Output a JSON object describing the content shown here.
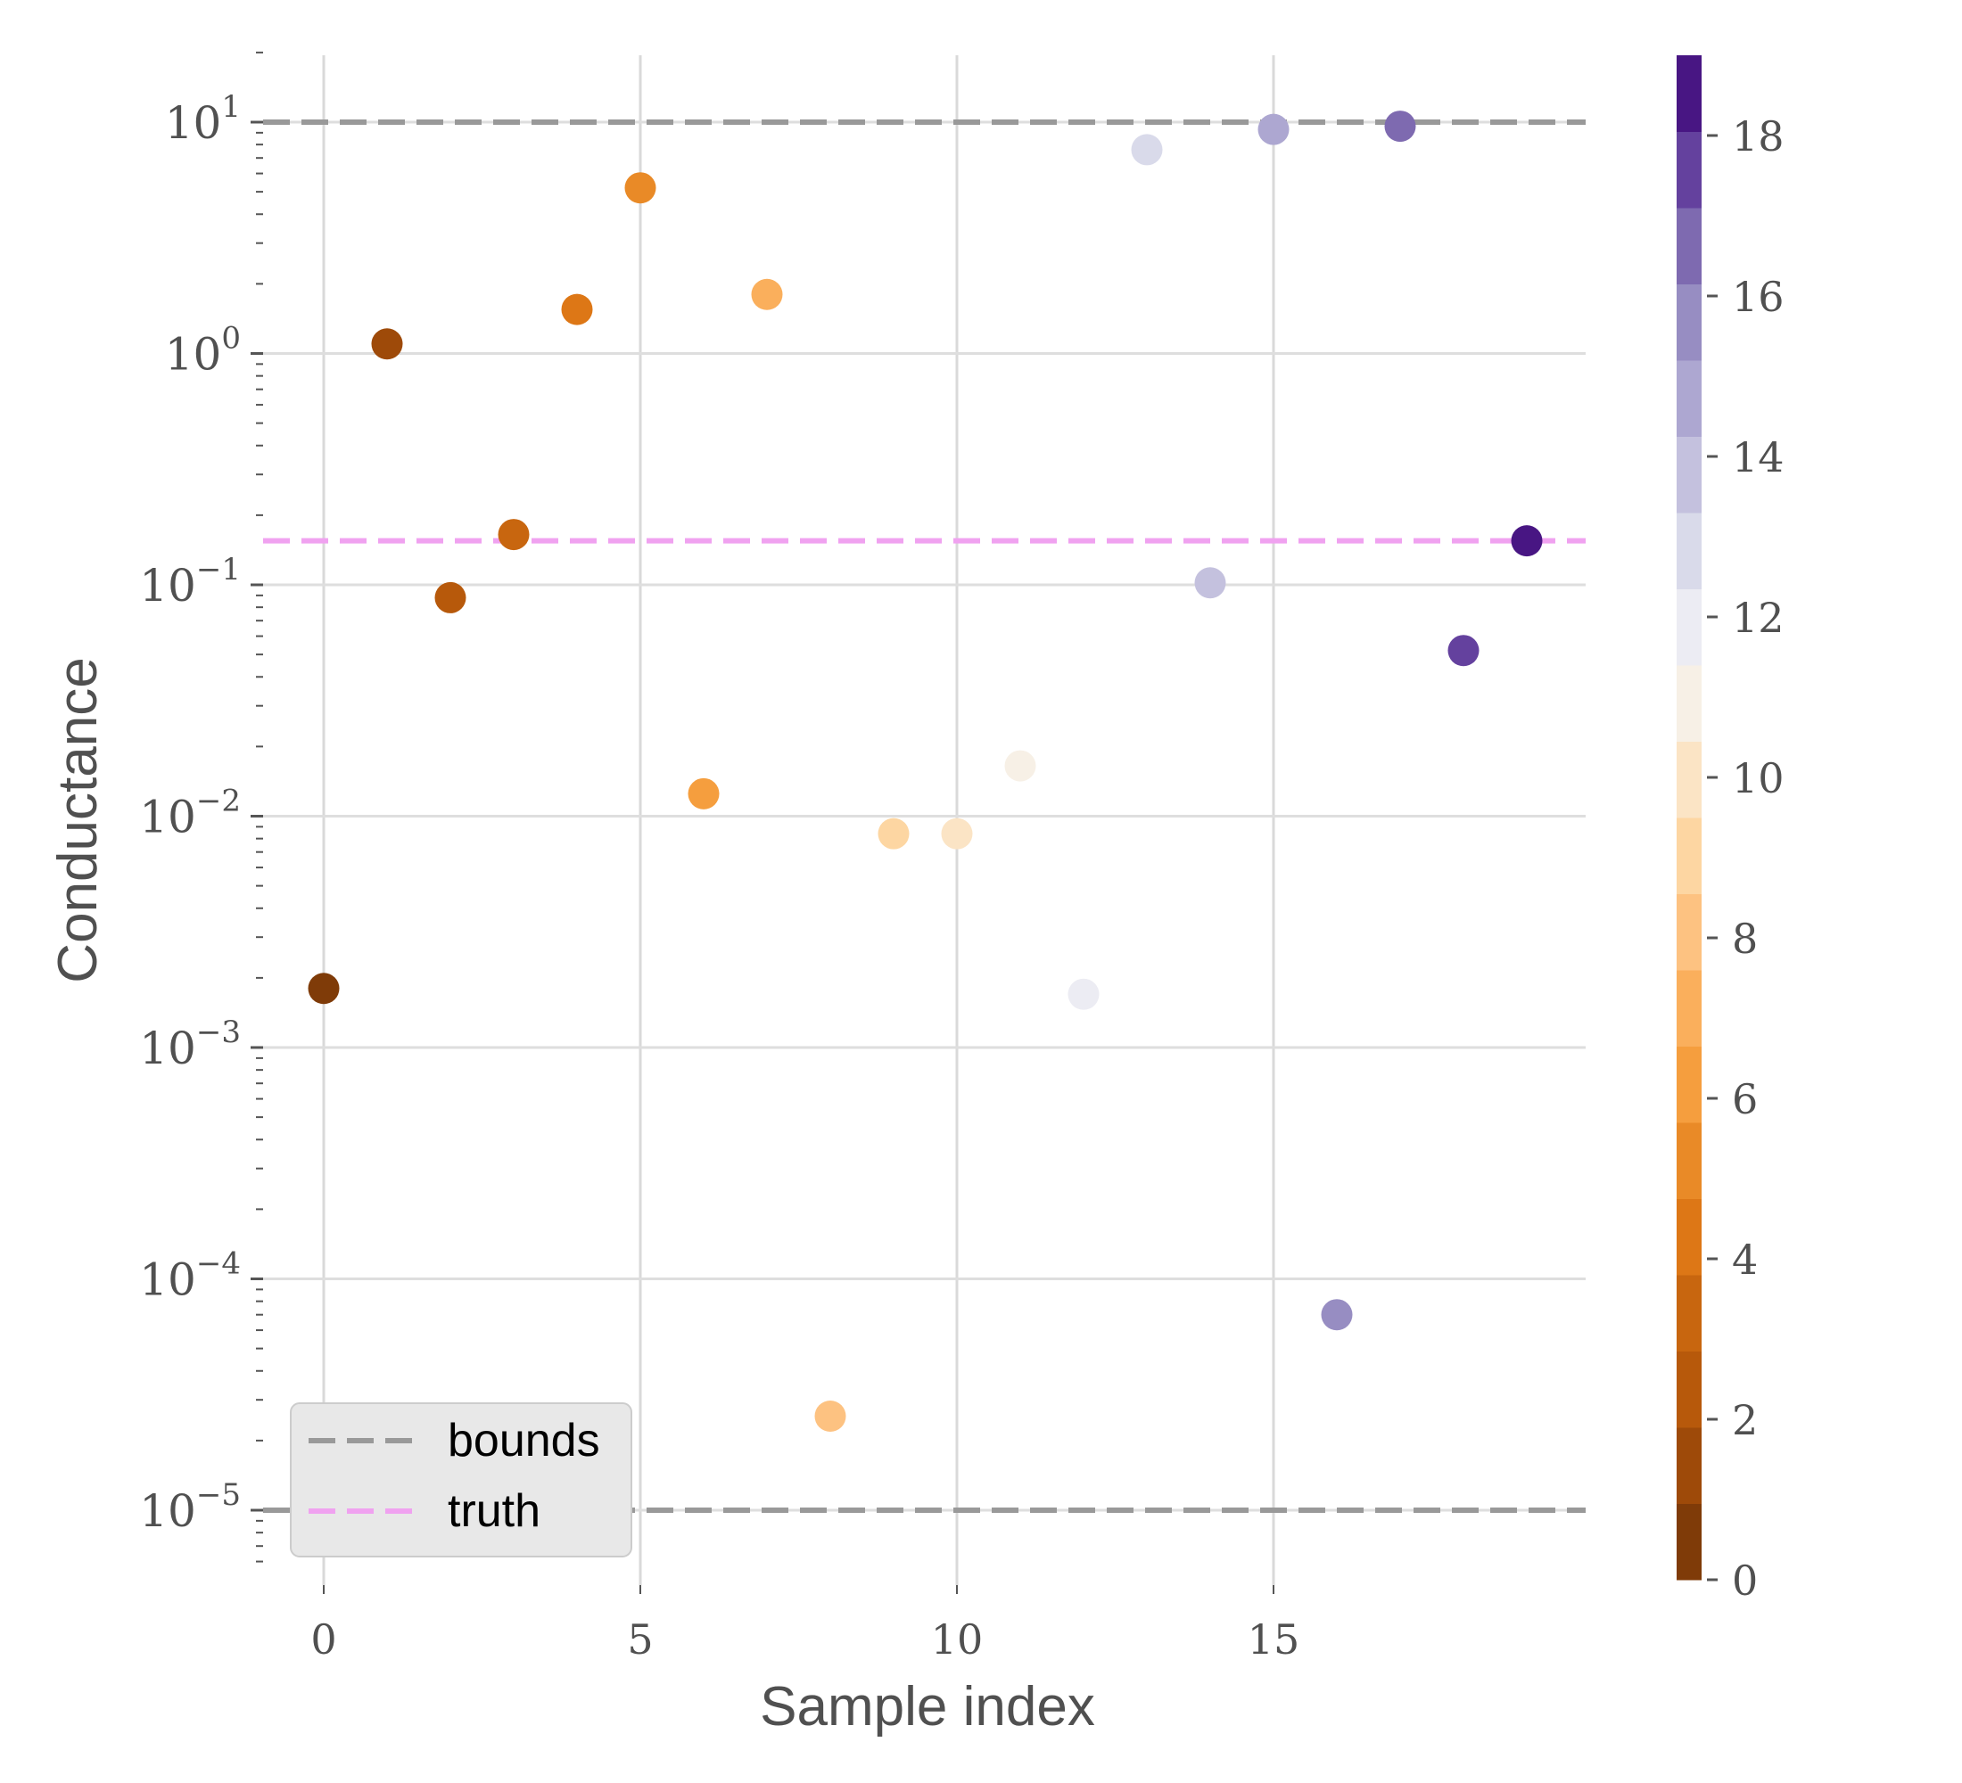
{
  "chart_data": {
    "type": "scatter",
    "xlabel": "Sample index",
    "ylabel": "Conductance",
    "yscale": "log",
    "xlim": [
      -1,
      20
    ],
    "ylim": [
      5.5e-06,
      20
    ],
    "x_ticks": [
      0,
      5,
      10,
      15
    ],
    "y_ticks": [
      {
        "value": 1e-05,
        "base": "10",
        "exp": "−5"
      },
      {
        "value": 0.0001,
        "base": "10",
        "exp": "−4"
      },
      {
        "value": 0.001,
        "base": "10",
        "exp": "−3"
      },
      {
        "value": 0.01,
        "base": "10",
        "exp": "−2"
      },
      {
        "value": 0.1,
        "base": "10",
        "exp": "−1"
      },
      {
        "value": 1,
        "base": "10",
        "exp": "0"
      },
      {
        "value": 10,
        "base": "10",
        "exp": "1"
      }
    ],
    "grid": true,
    "points": [
      {
        "x": 0,
        "y": 0.0018
      },
      {
        "x": 1,
        "y": 1.1
      },
      {
        "x": 2,
        "y": 0.088
      },
      {
        "x": 3,
        "y": 0.165
      },
      {
        "x": 4,
        "y": 1.55
      },
      {
        "x": 5,
        "y": 5.2
      },
      {
        "x": 6,
        "y": 0.0125
      },
      {
        "x": 7,
        "y": 1.8
      },
      {
        "x": 8,
        "y": 2.55e-05
      },
      {
        "x": 9,
        "y": 0.0084
      },
      {
        "x": 10,
        "y": 0.0084
      },
      {
        "x": 11,
        "y": 0.0165
      },
      {
        "x": 12,
        "y": 0.0017
      },
      {
        "x": 13,
        "y": 7.6
      },
      {
        "x": 14,
        "y": 0.102
      },
      {
        "x": 15,
        "y": 9.3
      },
      {
        "x": 16,
        "y": 7e-05
      },
      {
        "x": 17,
        "y": 9.6
      },
      {
        "x": 18,
        "y": 0.052
      },
      {
        "x": 19,
        "y": 0.155
      }
    ],
    "reference_lines": [
      {
        "name": "bounds",
        "values": [
          10,
          1e-05
        ],
        "color": "#999999",
        "style": "dashed"
      },
      {
        "name": "truth",
        "values": [
          0.155
        ],
        "color": "#f0a2f0",
        "style": "dashed"
      }
    ],
    "legend": {
      "placement": "lower-left",
      "entries": [
        "bounds",
        "truth"
      ]
    },
    "colorbar": {
      "range": [
        0,
        19
      ],
      "ticks": [
        "0",
        "2",
        "4",
        "6",
        "8",
        "10",
        "12",
        "14",
        "16",
        "18"
      ],
      "tick_values": [
        0,
        2,
        4,
        6,
        8,
        10,
        12,
        14,
        16,
        18
      ],
      "colors": [
        "#7f3b08",
        "#9e4a09",
        "#b7590b",
        "#c8660f",
        "#dd7716",
        "#e98a27",
        "#f59e3e",
        "#faaf5c",
        "#fdc281",
        "#fdd6a2",
        "#fbe4c5",
        "#f7f0e6",
        "#ececf3",
        "#d9daea",
        "#c4c1de",
        "#ada7d1",
        "#978dc2",
        "#7e6ab0",
        "#64419e",
        "#481683"
      ]
    }
  }
}
